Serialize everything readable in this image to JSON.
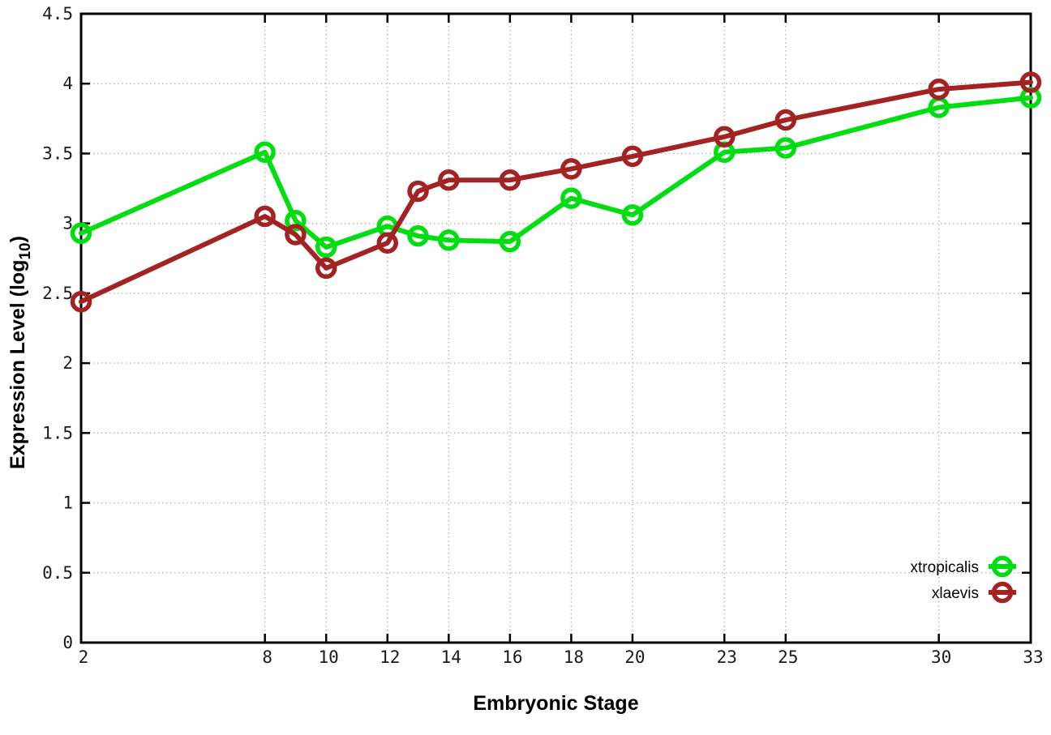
{
  "figure": {
    "background": "#ffffff",
    "border_color": "#000000",
    "grid_color": "#b5b5b5",
    "tick_label_color": "#1a1a1a"
  },
  "chart_data": {
    "type": "line",
    "title": "",
    "xlabel": "Embryonic Stage",
    "ylabel": "Expression Level (log10)",
    "ylabel_parts": {
      "main": "Expression Level (log",
      "sub": "10",
      "end": ")"
    },
    "x": [
      2,
      8,
      9,
      10,
      12,
      13,
      14,
      16,
      18,
      20,
      23,
      25,
      30,
      33
    ],
    "series": [
      {
        "name": "xtropicalis",
        "color": "#00dd11",
        "values": [
          2.93,
          3.51,
          3.02,
          2.83,
          2.98,
          2.91,
          2.88,
          2.87,
          3.18,
          3.06,
          3.51,
          3.54,
          3.83,
          3.9
        ]
      },
      {
        "name": "xlaevis",
        "color": "#a32323",
        "values": [
          2.44,
          3.05,
          2.92,
          2.68,
          2.86,
          3.23,
          3.31,
          3.31,
          3.39,
          3.48,
          3.62,
          3.74,
          3.96,
          4.01
        ]
      }
    ],
    "xticks": [
      2,
      8,
      10,
      12,
      14,
      16,
      18,
      20,
      23,
      25,
      30,
      33
    ],
    "yticks": [
      0,
      0.5,
      1,
      1.5,
      2,
      2.5,
      3,
      3.5,
      4,
      4.5
    ],
    "xlim": [
      2,
      33
    ],
    "ylim": [
      0,
      4.5
    ],
    "grid": true,
    "legend_position": "inside-bottom-right",
    "legend_entries": [
      "xtropicalis",
      "xlaevis"
    ]
  }
}
